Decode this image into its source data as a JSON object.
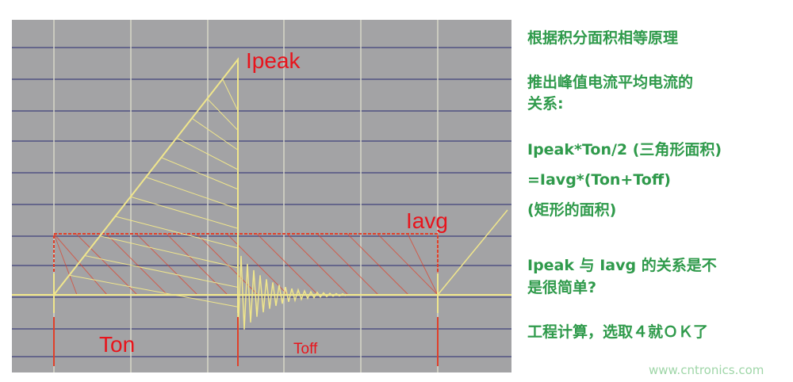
{
  "diagram": {
    "labels": {
      "ipeak": "Ipeak",
      "iavg": "Iavg",
      "ton": "Ton",
      "toff": "Toff"
    }
  },
  "text": {
    "lines": [
      "根据积分面积相等原理",
      "推出峰值电流平均电流的",
      "关系:",
      "Ipeak*Ton/2 (三角形面积)",
      "=Iavg*(Ton+Toff)",
      "(矩形的面积)",
      "Ipeak 与 Iavg 的关系是不",
      "是很简单?",
      "工程计算，选取４就ＯＫ了"
    ]
  },
  "watermark": "www.cntronics.com"
}
